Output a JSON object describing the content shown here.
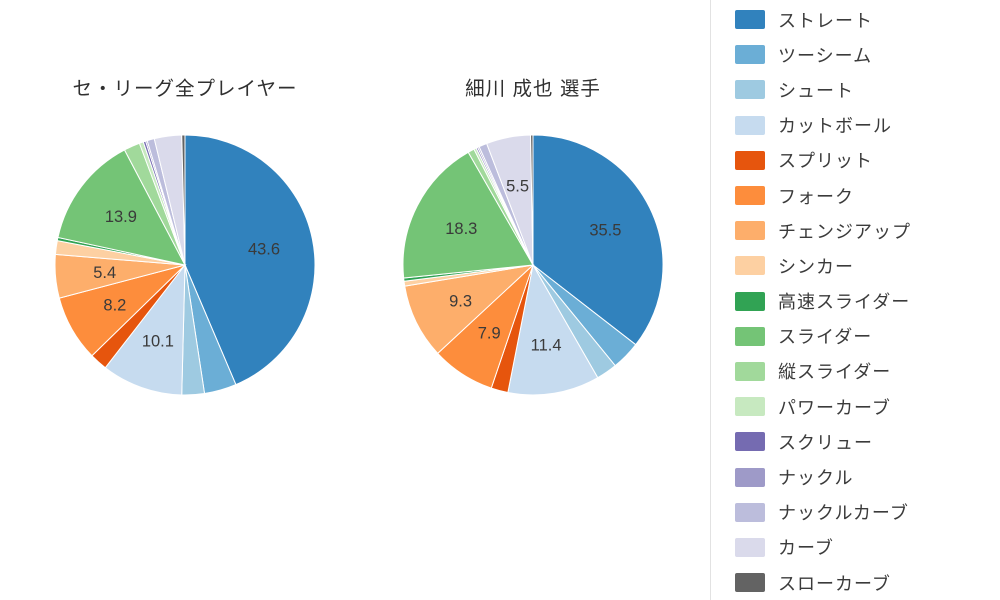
{
  "page": {
    "background": "#ffffff",
    "text_color": "#3a3a3a"
  },
  "chart_data": [
    {
      "type": "pie",
      "title": "セ・リーグ全プレイヤー",
      "categories": [
        "ストレート",
        "ツーシーム",
        "シュート",
        "カットボール",
        "スプリット",
        "フォーク",
        "チェンジアップ",
        "シンカー",
        "高速スライダー",
        "スライダー",
        "縦スライダー",
        "パワーカーブ",
        "スクリュー",
        "ナックル",
        "ナックルカーブ",
        "カーブ",
        "スローカーブ"
      ],
      "values": [
        43.6,
        4.0,
        2.8,
        10.1,
        2.2,
        8.2,
        5.4,
        1.7,
        0.4,
        13.9,
        2.0,
        0.5,
        0.3,
        0.2,
        0.9,
        3.4,
        0.4
      ],
      "visible_labels": [
        "43.6",
        "10.1",
        "8.2",
        "13.9"
      ],
      "colors": [
        "#3182bd",
        "#6baed6",
        "#9ecae1",
        "#c6dbef",
        "#e6550d",
        "#fd8d3c",
        "#fdae6b",
        "#fdd0a2",
        "#31a354",
        "#74c476",
        "#a1d99b",
        "#c7e9c0",
        "#756bb1",
        "#9e9ac8",
        "#bcbddc",
        "#dadaeb",
        "#636363"
      ],
      "start_angle": "top",
      "direction": "clockwise",
      "label_min_pct": 5.4,
      "label_radius_frac": 0.62
    },
    {
      "type": "pie",
      "title": "細川 成也 選手",
      "categories": [
        "ストレート",
        "ツーシーム",
        "シュート",
        "カットボール",
        "スプリット",
        "フォーク",
        "チェンジアップ",
        "シンカー",
        "高速スライダー",
        "スライダー",
        "縦スライダー",
        "パワーカーブ",
        "スクリュー",
        "ナックル",
        "ナックルカーブ",
        "カーブ",
        "スローカーブ"
      ],
      "values": [
        35.5,
        3.6,
        2.6,
        11.4,
        2.1,
        7.9,
        9.3,
        0.6,
        0.4,
        18.3,
        0.8,
        0.3,
        0.2,
        0.2,
        1.0,
        5.5,
        0.3
      ],
      "visible_labels": [
        "35.5",
        "11.4",
        "7.9",
        "9.3",
        "18.3",
        "5.5"
      ],
      "colors": [
        "#3182bd",
        "#6baed6",
        "#9ecae1",
        "#c6dbef",
        "#e6550d",
        "#fd8d3c",
        "#fdae6b",
        "#fdd0a2",
        "#31a354",
        "#74c476",
        "#a1d99b",
        "#c7e9c0",
        "#756bb1",
        "#9e9ac8",
        "#bcbddc",
        "#dadaeb",
        "#636363"
      ],
      "start_angle": "top",
      "direction": "clockwise",
      "label_min_pct": 5.5,
      "label_radius_frac": 0.62
    }
  ],
  "legend": {
    "position": "right",
    "items": [
      {
        "label": "ストレート",
        "color": "#3182bd"
      },
      {
        "label": "ツーシーム",
        "color": "#6baed6"
      },
      {
        "label": "シュート",
        "color": "#9ecae1"
      },
      {
        "label": "カットボール",
        "color": "#c6dbef"
      },
      {
        "label": "スプリット",
        "color": "#e6550d"
      },
      {
        "label": "フォーク",
        "color": "#fd8d3c"
      },
      {
        "label": "チェンジアップ",
        "color": "#fdae6b"
      },
      {
        "label": "シンカー",
        "color": "#fdd0a2"
      },
      {
        "label": "高速スライダー",
        "color": "#31a354"
      },
      {
        "label": "スライダー",
        "color": "#74c476"
      },
      {
        "label": "縦スライダー",
        "color": "#a1d99b"
      },
      {
        "label": "パワーカーブ",
        "color": "#c7e9c0"
      },
      {
        "label": "スクリュー",
        "color": "#756bb1"
      },
      {
        "label": "ナックル",
        "color": "#9e9ac8"
      },
      {
        "label": "ナックルカーブ",
        "color": "#bcbddc"
      },
      {
        "label": "カーブ",
        "color": "#dadaeb"
      },
      {
        "label": "スローカーブ",
        "color": "#636363"
      }
    ]
  }
}
